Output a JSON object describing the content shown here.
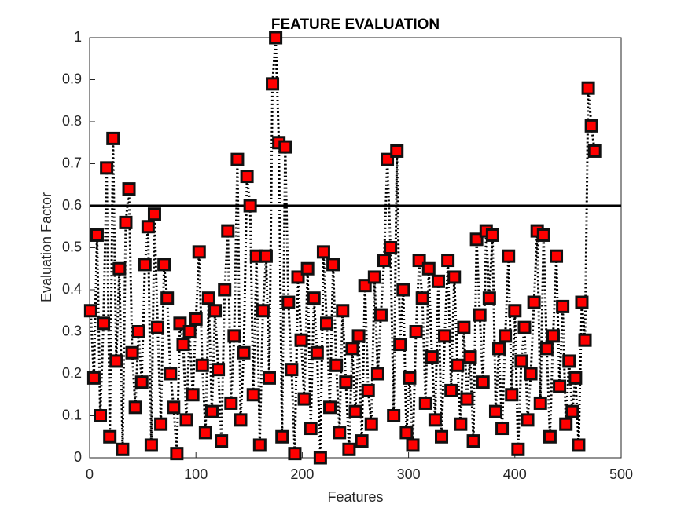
{
  "chart_data": {
    "type": "line",
    "title": "FEATURE EVALUATION",
    "x_label": "Features",
    "y_label": "Evaluation Factor",
    "x": [
      1,
      4,
      7,
      10,
      13,
      16,
      19,
      22,
      25,
      28,
      31,
      34,
      37,
      40,
      43,
      46,
      49,
      52,
      55,
      58,
      61,
      64,
      67,
      70,
      73,
      76,
      79,
      82,
      85,
      88,
      91,
      94,
      97,
      100,
      103,
      106,
      109,
      112,
      115,
      118,
      121,
      124,
      127,
      130,
      133,
      136,
      139,
      142,
      145,
      148,
      151,
      154,
      157,
      160,
      163,
      166,
      169,
      172,
      175,
      178,
      181,
      184,
      187,
      190,
      193,
      196,
      199,
      202,
      205,
      208,
      211,
      214,
      217,
      220,
      223,
      226,
      229,
      232,
      235,
      238,
      241,
      244,
      247,
      250,
      253,
      256,
      259,
      262,
      265,
      268,
      271,
      274,
      277,
      280,
      283,
      286,
      289,
      292,
      295,
      298,
      301,
      304,
      307,
      310,
      313,
      316,
      319,
      322,
      325,
      328,
      331,
      334,
      337,
      340,
      343,
      346,
      349,
      352,
      355,
      358,
      361,
      364,
      367,
      370,
      373,
      376,
      379,
      382,
      385,
      388,
      391,
      394,
      397,
      400,
      403,
      406,
      409,
      412,
      415,
      418,
      421,
      424,
      427,
      430,
      433,
      436,
      439,
      442,
      445,
      448,
      451,
      454,
      457,
      460,
      463,
      466,
      469,
      472,
      475
    ],
    "values": [
      0.35,
      0.19,
      0.53,
      0.1,
      0.32,
      0.69,
      0.05,
      0.76,
      0.23,
      0.45,
      0.02,
      0.56,
      0.64,
      0.25,
      0.12,
      0.3,
      0.18,
      0.46,
      0.55,
      0.03,
      0.58,
      0.31,
      0.08,
      0.46,
      0.38,
      0.2,
      0.12,
      0.01,
      0.32,
      0.27,
      0.09,
      0.3,
      0.15,
      0.33,
      0.49,
      0.22,
      0.06,
      0.38,
      0.11,
      0.35,
      0.21,
      0.04,
      0.4,
      0.54,
      0.13,
      0.29,
      0.71,
      0.09,
      0.25,
      0.67,
      0.6,
      0.15,
      0.48,
      0.03,
      0.35,
      0.48,
      0.19,
      0.89,
      1.0,
      0.75,
      0.05,
      0.74,
      0.37,
      0.21,
      0.01,
      0.43,
      0.28,
      0.14,
      0.45,
      0.07,
      0.38,
      0.25,
      0.0,
      0.49,
      0.32,
      0.12,
      0.46,
      0.22,
      0.06,
      0.35,
      0.18,
      0.02,
      0.26,
      0.11,
      0.29,
      0.04,
      0.41,
      0.16,
      0.08,
      0.43,
      0.2,
      0.34,
      0.47,
      0.71,
      0.5,
      0.1,
      0.73,
      0.27,
      0.4,
      0.06,
      0.19,
      0.03,
      0.3,
      0.47,
      0.38,
      0.13,
      0.45,
      0.24,
      0.09,
      0.42,
      0.05,
      0.29,
      0.47,
      0.16,
      0.43,
      0.22,
      0.08,
      0.31,
      0.14,
      0.24,
      0.04,
      0.52,
      0.34,
      0.18,
      0.54,
      0.38,
      0.53,
      0.11,
      0.26,
      0.07,
      0.29,
      0.48,
      0.15,
      0.35,
      0.02,
      0.23,
      0.31,
      0.09,
      0.2,
      0.37,
      0.54,
      0.13,
      0.53,
      0.26,
      0.05,
      0.29,
      0.48,
      0.17,
      0.36,
      0.08,
      0.23,
      0.11,
      0.19,
      0.03,
      0.37,
      0.28,
      0.88,
      0.79,
      0.73
    ],
    "color": "#ff0000",
    "line_color": "#000000",
    "reference_line": 0.6,
    "xlim": [
      0,
      500
    ],
    "xticks": [
      0,
      100,
      200,
      300,
      400,
      500
    ],
    "ylim": [
      0,
      1
    ],
    "yticks": [
      0,
      0.1,
      0.2,
      0.3,
      0.4,
      0.5,
      0.6,
      0.7,
      0.8,
      0.9,
      1
    ],
    "grid": false
  }
}
